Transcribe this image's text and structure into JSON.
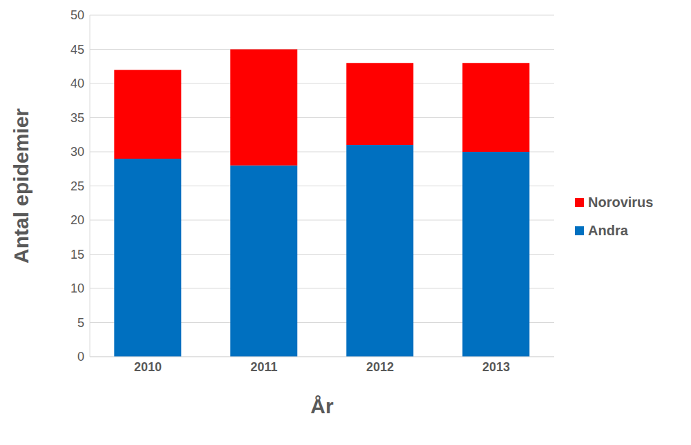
{
  "chart_data": {
    "type": "bar",
    "stacked": true,
    "x_label": "År",
    "y_label": "Antal epidemier",
    "categories": [
      "2010",
      "2011",
      "2012",
      "2013"
    ],
    "series": [
      {
        "name": "Andra",
        "color": "#0070c0",
        "values": [
          29,
          28,
          31,
          30
        ]
      },
      {
        "name": "Norovirus",
        "color": "#ff0000",
        "values": [
          13,
          17,
          12,
          13
        ]
      }
    ],
    "ylim": [
      0,
      50
    ],
    "yticks": [
      0,
      5,
      10,
      15,
      20,
      25,
      30,
      35,
      40,
      45,
      50
    ],
    "grid": true,
    "legend": "right"
  }
}
